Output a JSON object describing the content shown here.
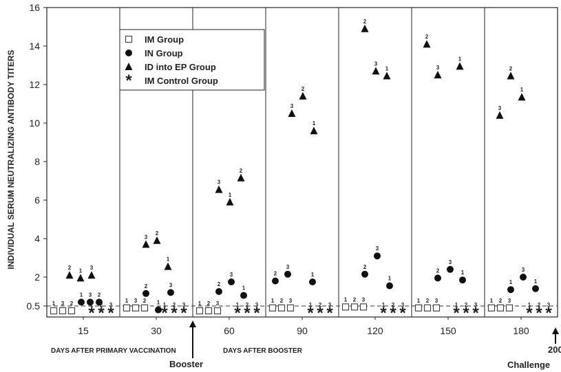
{
  "chart_data": {
    "type": "scatter",
    "title": "",
    "ylabel": "INDIVIDUAL SERUM NEUTRALIZING ANTIBODY TITERS",
    "yticks": [
      "0.5",
      "2",
      "4",
      "6",
      "8",
      "10",
      "12",
      "14",
      "16"
    ],
    "ylim": [
      0,
      16
    ],
    "panels": [
      "15",
      "30",
      "60",
      "90",
      "120",
      "150",
      "180"
    ],
    "axis_captions": {
      "primary": "DAYS AFTER PRIMARY VACCINATION",
      "booster_days": "DAYS AFTER BOOSTER",
      "booster": "Booster",
      "challenge_day": "200",
      "challenge": "Challenge"
    },
    "threshold": 0.5,
    "legend": [
      {
        "name": "IM Group",
        "marker": "square"
      },
      {
        "name": "IN Group",
        "marker": "circle"
      },
      {
        "name": "ID into EP Group",
        "marker": "triangle"
      },
      {
        "name": "IM Control Group",
        "marker": "asterisk"
      }
    ],
    "series": [
      {
        "name": "IM Group",
        "marker": "square",
        "points": [
          {
            "panel": 0,
            "slot": 0,
            "label": "1",
            "y": 0
          },
          {
            "panel": 0,
            "slot": 1,
            "label": "3",
            "y": 0
          },
          {
            "panel": 0,
            "slot": 2,
            "label": "2",
            "y": 0
          },
          {
            "panel": 1,
            "slot": 0,
            "label": "1",
            "y": 0.4
          },
          {
            "panel": 1,
            "slot": 1,
            "label": "3",
            "y": 0.4
          },
          {
            "panel": 1,
            "slot": 2,
            "label": "2",
            "y": 0.4
          },
          {
            "panel": 2,
            "slot": 0,
            "label": "1",
            "y": 0.25
          },
          {
            "panel": 2,
            "slot": 1,
            "label": "2",
            "y": 0.25
          },
          {
            "panel": 2,
            "slot": 2,
            "label": "3",
            "y": 0.25
          },
          {
            "panel": 3,
            "slot": 0,
            "label": "1",
            "y": 0.4
          },
          {
            "panel": 3,
            "slot": 1,
            "label": "2",
            "y": 0.4
          },
          {
            "panel": 3,
            "slot": 2,
            "label": "3",
            "y": 0.4
          },
          {
            "panel": 4,
            "slot": 0,
            "label": "1",
            "y": 0.45
          },
          {
            "panel": 4,
            "slot": 1,
            "label": "2",
            "y": 0.45
          },
          {
            "panel": 4,
            "slot": 2,
            "label": "3",
            "y": 0.45
          },
          {
            "panel": 5,
            "slot": 0,
            "label": "1",
            "y": 0.4
          },
          {
            "panel": 5,
            "slot": 1,
            "label": "2",
            "y": 0.4
          },
          {
            "panel": 5,
            "slot": 2,
            "label": "3",
            "y": 0.4
          },
          {
            "panel": 6,
            "slot": 0,
            "label": "1",
            "y": 0.4
          },
          {
            "panel": 6,
            "slot": 1,
            "label": "2",
            "y": 0.4
          },
          {
            "panel": 6,
            "slot": 2,
            "label": "3",
            "y": 0.4
          }
        ]
      },
      {
        "name": "IN Group",
        "marker": "circle",
        "points": [
          {
            "panel": 0,
            "slot": 3,
            "label": "1",
            "y": 0.7
          },
          {
            "panel": 0,
            "slot": 4,
            "label": "3",
            "y": 0.7
          },
          {
            "panel": 0,
            "slot": 5,
            "label": "2",
            "y": 0.7
          },
          {
            "panel": 1,
            "slot": 1,
            "label": "2",
            "y": 1.15
          },
          {
            "panel": 1,
            "slot": 2,
            "label": "1",
            "y": 0.3
          },
          {
            "panel": 1,
            "slot": 3,
            "label": "3",
            "y": 1.2
          },
          {
            "panel": 2,
            "slot": 1,
            "label": "2",
            "y": 1.25
          },
          {
            "panel": 2,
            "slot": 2,
            "label": "3",
            "y": 1.75
          },
          {
            "panel": 2,
            "slot": 3,
            "label": "1",
            "y": 1.05
          },
          {
            "panel": 3,
            "slot": 0,
            "label": "2",
            "y": 1.8
          },
          {
            "panel": 3,
            "slot": 1,
            "label": "3",
            "y": 2.15
          },
          {
            "panel": 3,
            "slot": 3,
            "label": "1",
            "y": 1.75
          },
          {
            "panel": 4,
            "slot": 1,
            "label": "2",
            "y": 2.15
          },
          {
            "panel": 4,
            "slot": 2,
            "label": "3",
            "y": 3.1
          },
          {
            "panel": 4,
            "slot": 3,
            "label": "1",
            "y": 1.55
          },
          {
            "panel": 5,
            "slot": 1,
            "label": "2",
            "y": 1.95
          },
          {
            "panel": 5,
            "slot": 2,
            "label": "3",
            "y": 2.4
          },
          {
            "panel": 5,
            "slot": 3,
            "label": "1",
            "y": 1.85
          },
          {
            "panel": 6,
            "slot": 1,
            "label": "1",
            "y": 1.35
          },
          {
            "panel": 6,
            "slot": 2,
            "label": "3",
            "y": 2.0
          },
          {
            "panel": 6,
            "slot": 3,
            "label": "1",
            "y": 1.4
          }
        ]
      },
      {
        "name": "ID into EP Group",
        "marker": "triangle",
        "points": [
          {
            "panel": 0,
            "slot": 1,
            "label": "2",
            "y": 2.1
          },
          {
            "panel": 0,
            "slot": 2,
            "label": "1",
            "y": 1.95
          },
          {
            "panel": 0,
            "slot": 3,
            "label": "3",
            "y": 2.1
          },
          {
            "panel": 1,
            "slot": 1,
            "label": "3",
            "y": 3.7
          },
          {
            "panel": 1,
            "slot": 2,
            "label": "2",
            "y": 3.9
          },
          {
            "panel": 1,
            "slot": 3,
            "label": "1",
            "y": 2.55
          },
          {
            "panel": 2,
            "slot": 1,
            "label": "3",
            "y": 6.55
          },
          {
            "panel": 2,
            "slot": 2,
            "label": "1",
            "y": 5.9
          },
          {
            "panel": 2,
            "slot": 3,
            "label": "2",
            "y": 7.15
          },
          {
            "panel": 3,
            "slot": 1,
            "label": "3",
            "y": 10.5
          },
          {
            "panel": 3,
            "slot": 2,
            "label": "2",
            "y": 11.4
          },
          {
            "panel": 3,
            "slot": 3,
            "label": "1",
            "y": 9.6
          },
          {
            "panel": 4,
            "slot": 1,
            "label": "2",
            "y": 14.9
          },
          {
            "panel": 4,
            "slot": 2,
            "label": "3",
            "y": 12.7
          },
          {
            "panel": 4,
            "slot": 3,
            "label": "1",
            "y": 12.45
          },
          {
            "panel": 5,
            "slot": 0,
            "label": "2",
            "y": 14.1
          },
          {
            "panel": 5,
            "slot": 1,
            "label": "3",
            "y": 12.5
          },
          {
            "panel": 5,
            "slot": 3,
            "label": "1",
            "y": 12.95
          },
          {
            "panel": 6,
            "slot": 0,
            "label": "3",
            "y": 10.4
          },
          {
            "panel": 6,
            "slot": 1,
            "label": "2",
            "y": 12.45
          },
          {
            "panel": 6,
            "slot": 2,
            "label": "1",
            "y": 11.35
          }
        ]
      },
      {
        "name": "IM Control Group",
        "marker": "asterisk",
        "points": [
          {
            "panel": 0,
            "slot": 0,
            "label": "1",
            "y": 0
          },
          {
            "panel": 0,
            "slot": 1,
            "label": "2",
            "y": 0
          },
          {
            "panel": 0,
            "slot": 2,
            "label": "3",
            "y": 0
          },
          {
            "panel": 1,
            "slot": 0,
            "label": "1",
            "y": 0
          },
          {
            "panel": 1,
            "slot": 1,
            "label": "2",
            "y": 0
          },
          {
            "panel": 1,
            "slot": 2,
            "label": "3",
            "y": 0
          },
          {
            "panel": 2,
            "slot": 0,
            "label": "1",
            "y": 0
          },
          {
            "panel": 2,
            "slot": 1,
            "label": "2",
            "y": 0
          },
          {
            "panel": 2,
            "slot": 2,
            "label": "3",
            "y": 0
          },
          {
            "panel": 3,
            "slot": 0,
            "label": "1",
            "y": 0
          },
          {
            "panel": 3,
            "slot": 1,
            "label": "2",
            "y": 0
          },
          {
            "panel": 3,
            "slot": 2,
            "label": "3",
            "y": 0
          },
          {
            "panel": 4,
            "slot": 0,
            "label": "1",
            "y": 0
          },
          {
            "panel": 4,
            "slot": 1,
            "label": "2",
            "y": 0
          },
          {
            "panel": 4,
            "slot": 2,
            "label": "3",
            "y": 0
          },
          {
            "panel": 5,
            "slot": 0,
            "label": "1",
            "y": 0
          },
          {
            "panel": 5,
            "slot": 1,
            "label": "2",
            "y": 0
          },
          {
            "panel": 5,
            "slot": 2,
            "label": "3",
            "y": 0
          },
          {
            "panel": 6,
            "slot": 0,
            "label": "1",
            "y": 0
          },
          {
            "panel": 6,
            "slot": 1,
            "label": "2",
            "y": 0
          },
          {
            "panel": 6,
            "slot": 2,
            "label": "3",
            "y": 0
          }
        ]
      }
    ],
    "grid": false,
    "legend_placement": "top, inside the 30 and 60 day panels"
  }
}
